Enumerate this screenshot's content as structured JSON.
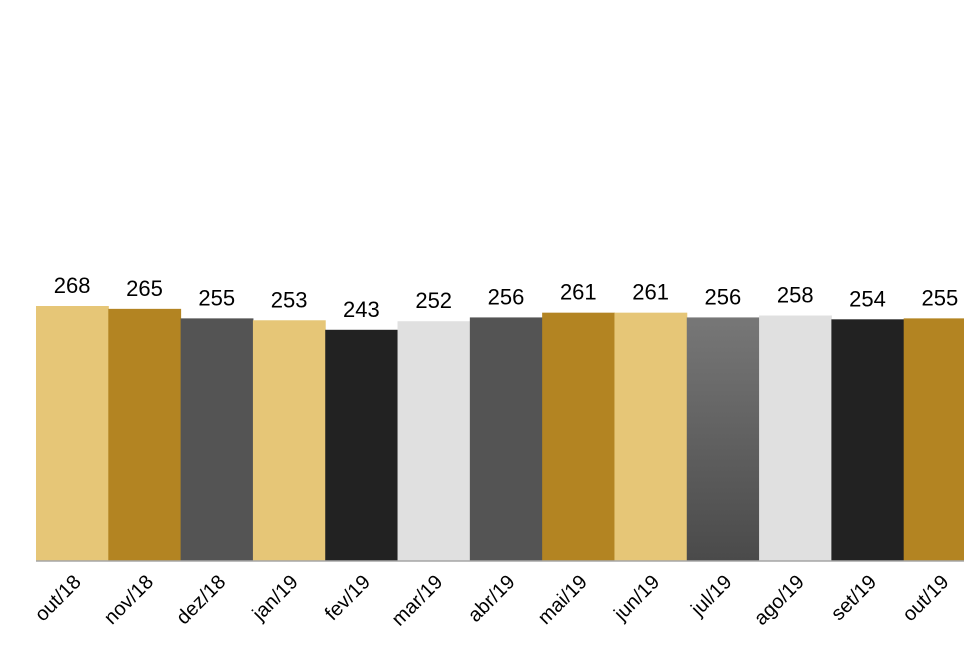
{
  "chart_data": {
    "type": "bar",
    "categories": [
      "out/18",
      "nov/18",
      "dez/18",
      "jan/19",
      "fev/19",
      "mar/19",
      "abr/19",
      "mai/19",
      "jun/19",
      "jul/19",
      "ago/19",
      "set/19",
      "out/19"
    ],
    "values": [
      268,
      265,
      255,
      253,
      243,
      252,
      256,
      261,
      261,
      256,
      258,
      254,
      255
    ],
    "value_labels": [
      "268",
      "265",
      "255",
      "253",
      "243",
      "252",
      "256",
      "261",
      "261",
      "256",
      "258",
      "254",
      "255"
    ],
    "title": "",
    "xlabel": "",
    "ylabel": "",
    "ylim": [
      0,
      340
    ],
    "grid": false,
    "legend": "none",
    "bar_colors": [
      "#E6C677",
      "#B38422",
      "#545454",
      "#E6C677",
      "#222222",
      "#E0E0E0",
      "#545454",
      "#B38422",
      "#E6C677",
      "gradient-gray",
      "#E0E0E0",
      "#222222",
      "#B38422"
    ],
    "axis_color": "#A6A6A6"
  }
}
